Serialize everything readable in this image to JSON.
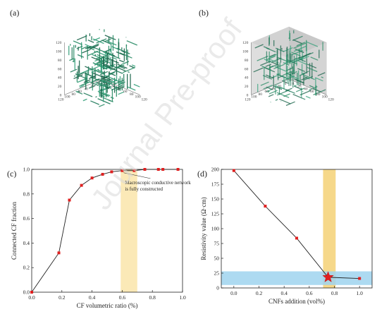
{
  "panels": {
    "a": {
      "label": "(a)"
    },
    "b": {
      "label": "(b)"
    },
    "c": {
      "label": "(c)"
    },
    "d": {
      "label": "(d)"
    }
  },
  "watermark": "Journal Pre-proof",
  "cube_axes": {
    "z_ticks": [
      "0",
      "20",
      "40",
      "60",
      "80",
      "100",
      "120"
    ],
    "x_ticks": [
      "0",
      "20",
      "40",
      "60",
      "80",
      "100",
      "120"
    ],
    "y_ticks": [
      "0",
      "20",
      "40",
      "60",
      "80",
      "100",
      "120"
    ]
  },
  "chart_data": [
    {
      "id": "c",
      "type": "line",
      "xlabel": "CF volumetric ratio (%)",
      "ylabel": "Connected CF fraction",
      "xlim": [
        0,
        1.0
      ],
      "ylim": [
        0,
        1.0
      ],
      "xticks": [
        "0.0",
        "0.2",
        "0.4",
        "0.6",
        "0.8",
        "1.0"
      ],
      "yticks": [
        "0.0",
        "0.2",
        "0.4",
        "0.6",
        "0.8",
        "1.0"
      ],
      "annotation": [
        "Macroscopic conductive network",
        "is fully constructed"
      ],
      "highlight_band_x": [
        0.59,
        0.7
      ],
      "highlight_color": "#fbe9b7",
      "series_color": "#e02020",
      "x": [
        0.0,
        0.18,
        0.25,
        0.33,
        0.4,
        0.47,
        0.53,
        0.6,
        0.68,
        0.75,
        0.84,
        0.87,
        0.97
      ],
      "y": [
        0.0,
        0.32,
        0.75,
        0.87,
        0.93,
        0.96,
        0.98,
        0.99,
        0.99,
        1.0,
        1.0,
        1.0,
        1.0
      ]
    },
    {
      "id": "d",
      "type": "line",
      "xlabel": "CNFs addition (vol%)",
      "ylabel": "Resistivity value (Ω·cm)",
      "xlim": [
        -0.1,
        1.1
      ],
      "ylim": [
        0,
        200
      ],
      "xticks": [
        "0.0",
        "0.2",
        "0.4",
        "0.6",
        "0.8",
        "1.0"
      ],
      "yticks": [
        "0",
        "25",
        "50",
        "75",
        "100",
        "125",
        "150",
        "175",
        "200"
      ],
      "vband_x": [
        0.71,
        0.81
      ],
      "vband_color": "#f6d88a",
      "hband_y": [
        5,
        28
      ],
      "hband_color": "#9fd3ee",
      "series_color": "#e02020",
      "x": [
        0.0,
        0.25,
        0.5,
        0.75,
        1.0
      ],
      "y": [
        198,
        138,
        84,
        18,
        16
      ],
      "star_index": 3
    }
  ]
}
